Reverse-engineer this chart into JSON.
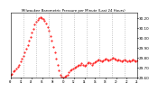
{
  "title": "Milwaukee Barometric Pressure per Minute (Last 24 Hours)",
  "ylabel_right": true,
  "line_color": "#ff0000",
  "bg_color": "#ffffff",
  "grid_color": "#aaaaaa",
  "ymin": 29.6,
  "ymax": 30.25,
  "yticks": [
    29.6,
    29.7,
    29.8,
    29.9,
    30.0,
    30.1,
    30.2
  ],
  "pressure_values": [
    29.63,
    29.64,
    29.66,
    29.67,
    29.69,
    29.71,
    29.73,
    29.76,
    29.79,
    29.82,
    29.85,
    29.89,
    29.93,
    29.97,
    30.01,
    30.05,
    30.09,
    30.13,
    30.16,
    30.18,
    30.2,
    30.21,
    30.2,
    30.19,
    30.17,
    30.14,
    30.11,
    30.07,
    30.02,
    29.97,
    29.91,
    29.85,
    29.79,
    29.73,
    29.67,
    29.63,
    29.61,
    29.6,
    29.61,
    29.62,
    29.63,
    29.65,
    29.67,
    29.68,
    29.69,
    29.7,
    29.71,
    29.72,
    29.73,
    29.73,
    29.74,
    29.73,
    29.72,
    29.73,
    29.74,
    29.75,
    29.74,
    29.73,
    29.74,
    29.75,
    29.76,
    29.77,
    29.78,
    29.77,
    29.76,
    29.77,
    29.78,
    29.79,
    29.78,
    29.77,
    29.78,
    29.79,
    29.8,
    29.79,
    29.78,
    29.77,
    29.78,
    29.77,
    29.76,
    29.77,
    29.78,
    29.77,
    29.76,
    29.77,
    29.76,
    29.77,
    29.78,
    29.77,
    29.76,
    29.77
  ],
  "num_vgrid": 10
}
